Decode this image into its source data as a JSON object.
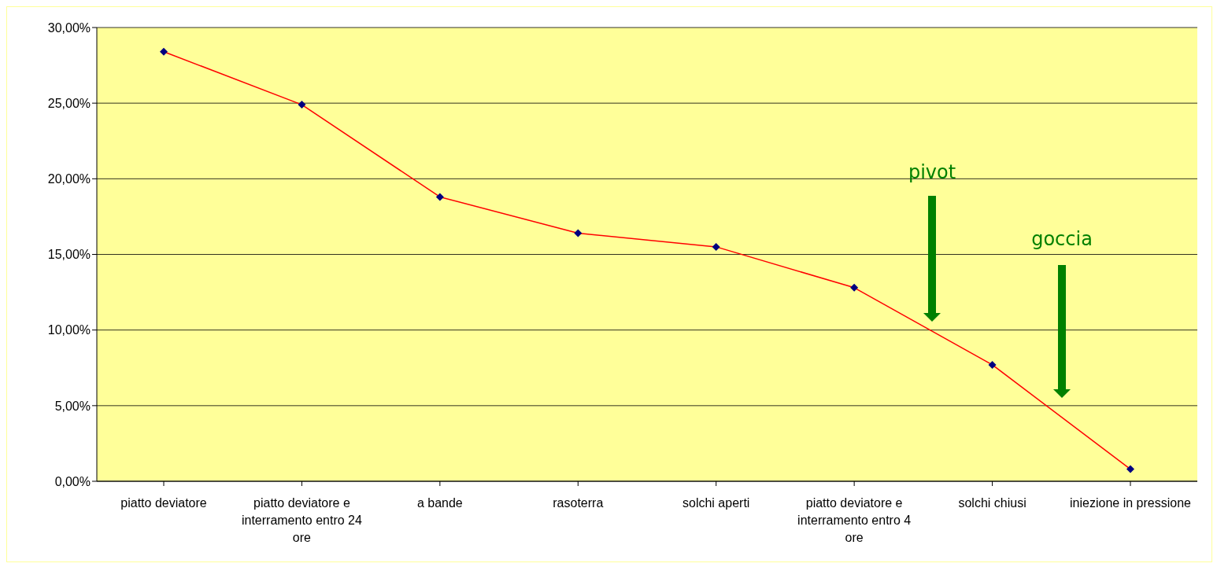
{
  "chart_data": {
    "type": "line",
    "categories": [
      "piatto deviatore",
      "piatto deviatore e interramento entro 24 ore",
      "a bande",
      "rasoterra",
      "solchi aperti",
      "piatto deviatore e interramento entro 4 ore",
      "solchi chiusi",
      "iniezione in pressione"
    ],
    "series": [
      {
        "color": "#ff0000",
        "values": [
          28.4,
          24.9,
          18.8,
          16.4,
          15.5,
          12.8,
          7.7,
          0.8
        ]
      }
    ],
    "ylim": [
      0,
      30
    ],
    "yticks": [
      {
        "value": 0,
        "label": "0,00%"
      },
      {
        "value": 5,
        "label": "5,00%"
      },
      {
        "value": 10,
        "label": "10,00%"
      },
      {
        "value": 15,
        "label": "15,00%"
      },
      {
        "value": 20,
        "label": "20,00%"
      },
      {
        "value": 25,
        "label": "25,00%"
      },
      {
        "value": 30,
        "label": "30,00%"
      }
    ],
    "grid": "y",
    "marker": "diamond",
    "line_style": "solid",
    "legend": false,
    "annotations": [
      "pivot",
      "goccia"
    ]
  }
}
